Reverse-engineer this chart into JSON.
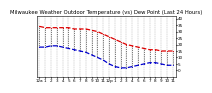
{
  "title": "Milwaukee Weather Outdoor Temperature (vs) Dew Point (Last 24 Hours)",
  "temp_color": "#dd0000",
  "dew_color": "#0000cc",
  "connect_color": "#000000",
  "bg_color": "#ffffff",
  "grid_color": "#888888",
  "ylim": [
    -5,
    42
  ],
  "ytick_values": [
    0,
    5,
    10,
    15,
    20,
    25,
    30,
    35,
    40
  ],
  "ytick_labels": [
    "0",
    "5",
    "10",
    "15",
    "20",
    "25",
    "30",
    "35",
    "40"
  ],
  "temp_values": [
    34,
    33,
    33,
    33,
    33,
    33,
    32,
    32,
    32,
    31,
    30,
    28,
    26,
    24,
    22,
    20,
    19,
    18,
    17,
    16,
    16,
    15,
    15,
    15
  ],
  "dew_values": [
    18,
    18,
    19,
    19,
    18,
    17,
    16,
    15,
    14,
    12,
    10,
    8,
    5,
    3,
    2,
    2,
    3,
    4,
    5,
    6,
    6,
    5,
    4,
    4
  ],
  "x_labels": [
    "12a",
    "1",
    "2",
    "3",
    "4",
    "5",
    "6",
    "7",
    "8",
    "9",
    "10",
    "11",
    "12p",
    "1",
    "2",
    "3",
    "4",
    "5",
    "6",
    "7",
    "8",
    "9",
    "10",
    "11"
  ],
  "title_fontsize": 3.8,
  "tick_fontsize": 3.0,
  "line_width": 0.9,
  "marker_size": 1.5,
  "fig_width": 1.6,
  "fig_height": 0.87
}
